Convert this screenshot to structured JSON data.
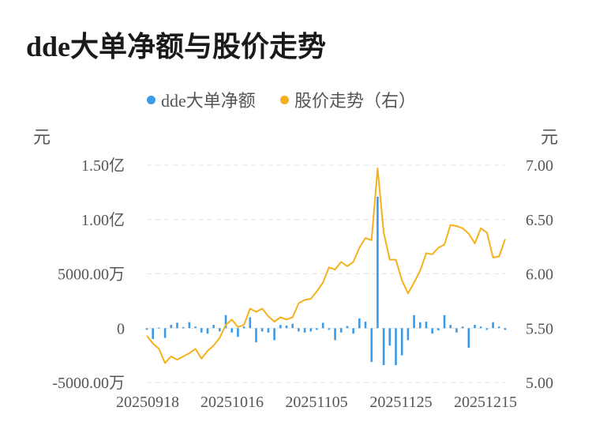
{
  "page": {
    "title": "dde大单净额与股价走势"
  },
  "legend": [
    {
      "label": "dde大单净额",
      "color": "#3b9be8"
    },
    {
      "label": "股价走势（右）",
      "color": "#f5b11c"
    }
  ],
  "axes": {
    "left_unit": "元",
    "right_unit": "元"
  },
  "chart_data": {
    "type": "bar+line",
    "title": "dde大单净额与股价走势",
    "legend_position": "top",
    "grid": true,
    "x_tick_labels": [
      "20250918",
      "20251016",
      "20251105",
      "20251125",
      "20251215"
    ],
    "y_left": {
      "ylim": [
        -50000000,
        150000000
      ],
      "tick_values": [
        -50000000,
        0,
        50000000,
        100000000,
        150000000
      ],
      "tick_labels": [
        "-5000.00万",
        "0",
        "5000.00万",
        "1.00亿",
        "1.50亿"
      ]
    },
    "y_right": {
      "ylim": [
        5.0,
        7.0
      ],
      "tick_values": [
        5.0,
        5.5,
        6.0,
        6.5,
        7.0
      ],
      "tick_labels": [
        "5.00",
        "5.50",
        "6.00",
        "6.50",
        "7.00"
      ]
    },
    "series": [
      {
        "name": "dde大单净额",
        "type": "bar",
        "axis": "left",
        "values": [
          -1500000,
          -10000000,
          500000,
          -9000000,
          3000000,
          5000000,
          1000000,
          5500000,
          1500000,
          -4000000,
          -5000000,
          3000000,
          -3000000,
          12000000,
          -4000000,
          -8000000,
          1500000,
          10000000,
          -13000000,
          -3000000,
          -4000000,
          -11000000,
          3000000,
          2500000,
          4000000,
          -3000000,
          -4000000,
          -3000000,
          -1500000,
          5000000,
          -1500000,
          -11000000,
          -4000000,
          2000000,
          -5000000,
          9000000,
          6000000,
          -31000000,
          121000000,
          -34000000,
          -16000000,
          -34000000,
          -25000000,
          -11000000,
          12000000,
          5500000,
          6000000,
          -5000000,
          -2000000,
          12000000,
          3000000,
          -4000000,
          1500000,
          -18000000,
          3000000,
          1500000,
          -1500000,
          5500000,
          1500000,
          -1500000
        ]
      },
      {
        "name": "股价走势（右）",
        "type": "line",
        "axis": "right",
        "values": [
          5.43,
          5.36,
          5.31,
          5.18,
          5.24,
          5.21,
          5.24,
          5.27,
          5.31,
          5.22,
          5.29,
          5.34,
          5.41,
          5.53,
          5.58,
          5.51,
          5.53,
          5.68,
          5.65,
          5.68,
          5.61,
          5.56,
          5.6,
          5.58,
          5.6,
          5.73,
          5.76,
          5.77,
          5.84,
          5.92,
          6.06,
          6.04,
          6.11,
          6.07,
          6.11,
          6.24,
          6.33,
          6.31,
          6.97,
          6.38,
          6.13,
          6.13,
          5.94,
          5.82,
          5.92,
          6.03,
          6.19,
          6.18,
          6.24,
          6.27,
          6.45,
          6.44,
          6.42,
          6.37,
          6.28,
          6.42,
          6.38,
          6.15,
          6.16,
          6.32
        ]
      }
    ]
  }
}
